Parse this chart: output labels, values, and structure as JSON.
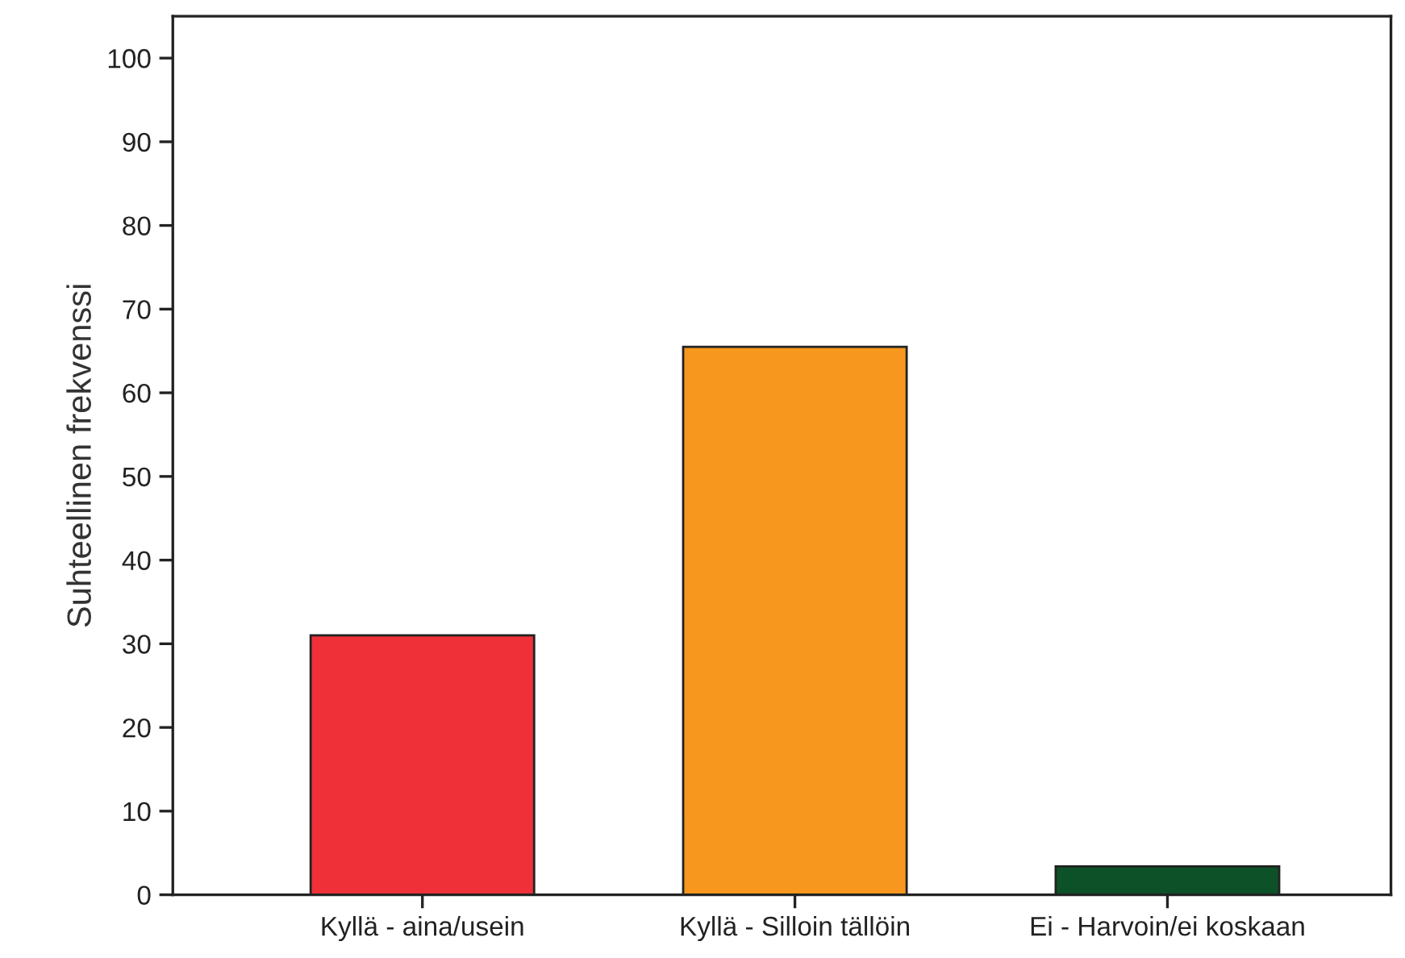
{
  "chart_data": {
    "type": "bar",
    "ylabel": "Suhteellinen frekvenssi",
    "categories": [
      "Kyllä - aina/usein",
      "Kyllä - Silloin tällöin",
      "Ei - Harvoin/ei koskaan"
    ],
    "values": [
      31,
      65.5,
      3.4
    ],
    "colors": [
      "#ef3038",
      "#f7971e",
      "#0d5128"
    ],
    "ylim": [
      0,
      105
    ],
    "yticks": [
      0,
      10,
      20,
      30,
      40,
      50,
      60,
      70,
      80,
      90,
      100
    ],
    "grid": false,
    "legend": false
  }
}
